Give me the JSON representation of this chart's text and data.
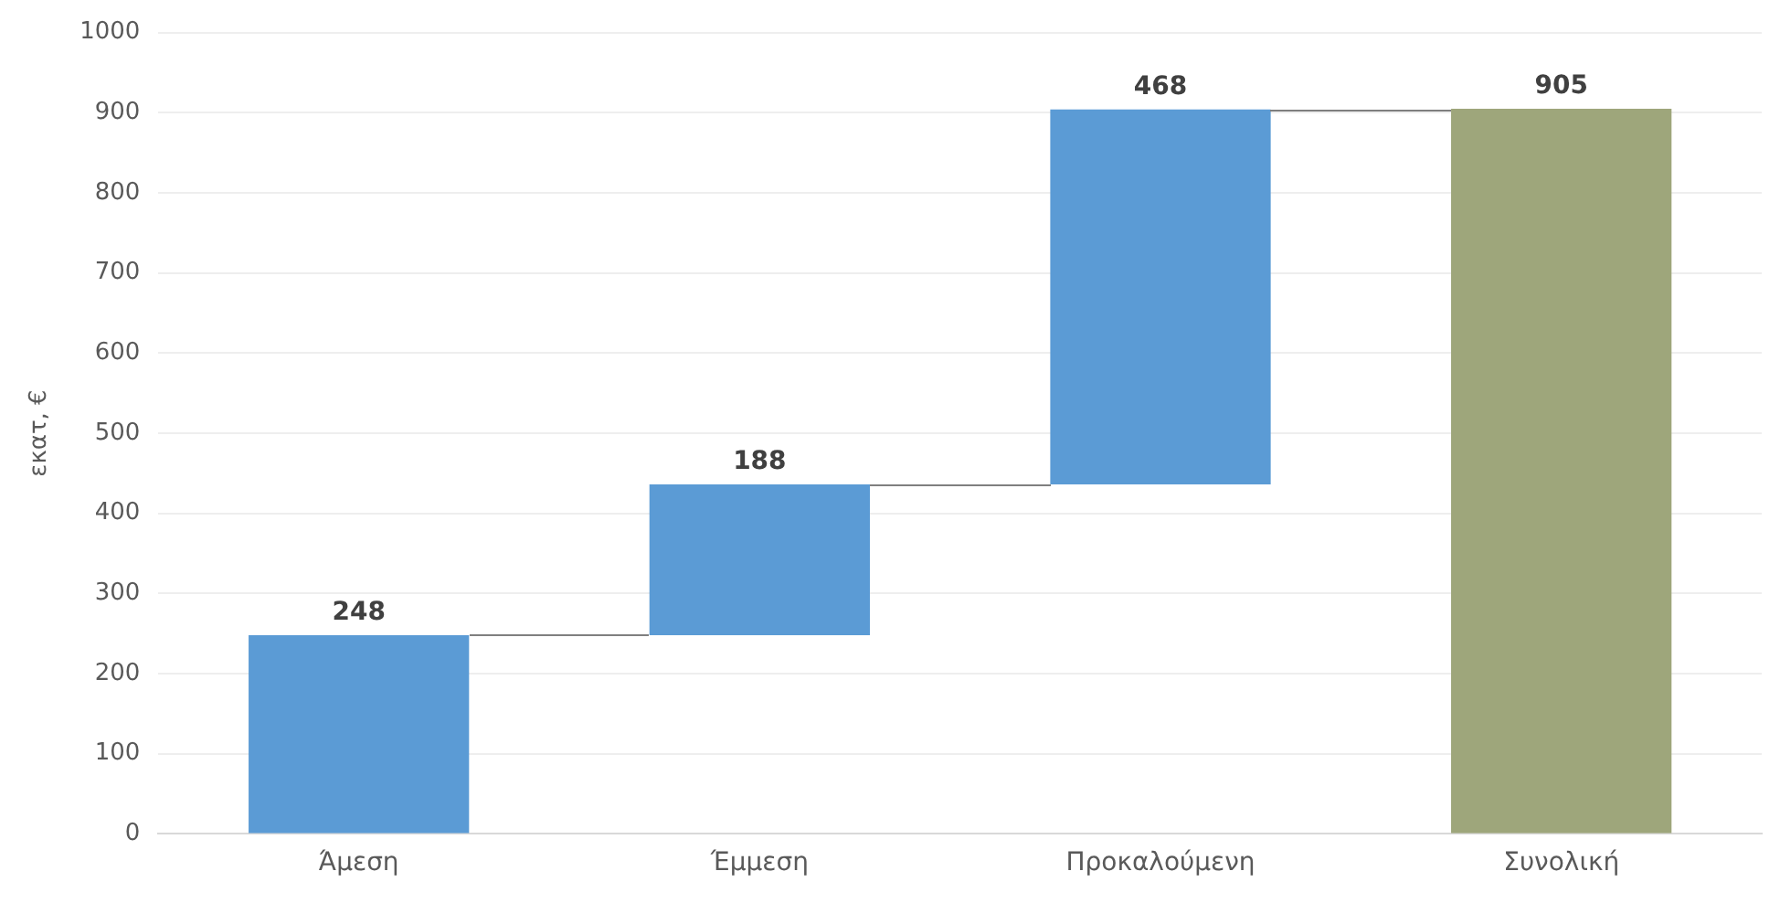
{
  "chart_data": {
    "type": "bar",
    "ylabel": "εκατ, €",
    "categories": [
      "Άμεση",
      "Έμμεση",
      "Προκαλούμενη",
      "Συνολική"
    ],
    "values": [
      248,
      188,
      468,
      905
    ],
    "base": [
      0,
      248,
      436,
      0
    ],
    "colors": [
      "#5b9bd5",
      "#5b9bd5",
      "#5b9bd5",
      "#9ea67b"
    ],
    "ylim": [
      0,
      1000
    ],
    "yticks": [
      0,
      100,
      200,
      300,
      400,
      500,
      600,
      700,
      800,
      900,
      1000
    ],
    "grid": "y",
    "data_labels": true
  }
}
